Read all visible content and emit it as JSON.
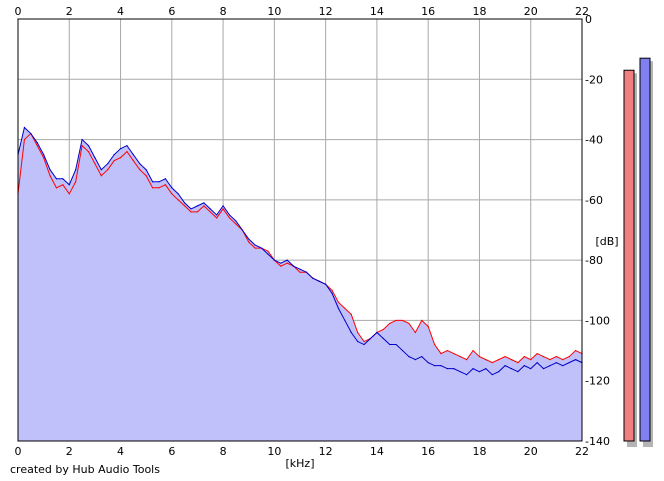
{
  "chart_data": {
    "type": "area",
    "title": "",
    "xlabel": "[kHz]",
    "ylabel": "[dB]",
    "xlim": [
      0,
      22
    ],
    "ylim": [
      -140,
      0
    ],
    "x_ticks": [
      "0",
      "2",
      "4",
      "6",
      "8",
      "10",
      "12",
      "14",
      "16",
      "18",
      "20",
      "22"
    ],
    "y_ticks": [
      "0",
      "-20",
      "-40",
      "-60",
      "-80",
      "-100",
      "-120",
      "-140"
    ],
    "grid": true,
    "x_tick_positions": [
      "top",
      "bottom"
    ],
    "y_tick_position": "right",
    "fill_color": "#c0c0fa",
    "series": [
      {
        "color": "#ff0000",
        "x": [
          0,
          0.25,
          0.5,
          0.75,
          1,
          1.25,
          1.5,
          1.75,
          2,
          2.25,
          2.5,
          2.75,
          3,
          3.25,
          3.5,
          3.75,
          4,
          4.25,
          4.5,
          4.75,
          5,
          5.25,
          5.5,
          5.75,
          6,
          6.25,
          6.5,
          6.75,
          7,
          7.25,
          7.5,
          7.75,
          8,
          8.25,
          8.5,
          8.75,
          9,
          9.25,
          9.5,
          9.75,
          10,
          10.25,
          10.5,
          10.75,
          11,
          11.25,
          11.5,
          11.75,
          12,
          12.25,
          12.5,
          12.75,
          13,
          13.25,
          13.5,
          13.75,
          14,
          14.25,
          14.5,
          14.75,
          15,
          15.25,
          15.5,
          15.75,
          16,
          16.25,
          16.5,
          16.75,
          17,
          17.25,
          17.5,
          17.75,
          18,
          18.25,
          18.5,
          18.75,
          19,
          19.25,
          19.5,
          19.75,
          20,
          20.25,
          20.5,
          20.75,
          21,
          21.25,
          21.5,
          21.75,
          22
        ],
        "values": [
          -58,
          -40,
          -38,
          -42,
          -46,
          -52,
          -56,
          -55,
          -58,
          -54,
          -42,
          -44,
          -48,
          -52,
          -50,
          -47,
          -46,
          -44,
          -47,
          -50,
          -52,
          -56,
          -56,
          -55,
          -58,
          -60,
          -62,
          -64,
          -64,
          -62,
          -64,
          -66,
          -63,
          -66,
          -68,
          -70,
          -74,
          -76,
          -76,
          -77,
          -80,
          -82,
          -81,
          -82,
          -84,
          -84,
          -86,
          -87,
          -88,
          -90,
          -94,
          -96,
          -98,
          -104,
          -107,
          -106,
          -104,
          -103,
          -101,
          -100,
          -100,
          -101,
          -104,
          -100,
          -102,
          -108,
          -111,
          -110,
          -111,
          -112,
          -113,
          -110,
          -112,
          -113,
          -114,
          -113,
          -112,
          -113,
          -114,
          -112,
          -113,
          -111,
          -112,
          -113,
          -112,
          -113,
          -112,
          -110,
          -111
        ]
      },
      {
        "color": "#0000c8",
        "x": [
          0,
          0.25,
          0.5,
          0.75,
          1,
          1.25,
          1.5,
          1.75,
          2,
          2.25,
          2.5,
          2.75,
          3,
          3.25,
          3.5,
          3.75,
          4,
          4.25,
          4.5,
          4.75,
          5,
          5.25,
          5.5,
          5.75,
          6,
          6.25,
          6.5,
          6.75,
          7,
          7.25,
          7.5,
          7.75,
          8,
          8.25,
          8.5,
          8.75,
          9,
          9.25,
          9.5,
          9.75,
          10,
          10.25,
          10.5,
          10.75,
          11,
          11.25,
          11.5,
          11.75,
          12,
          12.25,
          12.5,
          12.75,
          13,
          13.25,
          13.5,
          13.75,
          14,
          14.25,
          14.5,
          14.75,
          15,
          15.25,
          15.5,
          15.75,
          16,
          16.25,
          16.5,
          16.75,
          17,
          17.25,
          17.5,
          17.75,
          18,
          18.25,
          18.5,
          18.75,
          19,
          19.25,
          19.5,
          19.75,
          20,
          20.25,
          20.5,
          20.75,
          21,
          21.25,
          21.5,
          21.75,
          22
        ],
        "values": [
          -45,
          -36,
          -38,
          -41,
          -45,
          -50,
          -53,
          -53,
          -55,
          -50,
          -40,
          -42,
          -46,
          -50,
          -48,
          -45,
          -43,
          -42,
          -45,
          -48,
          -50,
          -54,
          -54,
          -53,
          -56,
          -58,
          -61,
          -63,
          -62,
          -61,
          -63,
          -65,
          -62,
          -65,
          -67,
          -70,
          -73,
          -75,
          -76,
          -78,
          -80,
          -81,
          -80,
          -82,
          -83,
          -84,
          -86,
          -87,
          -88,
          -91,
          -96,
          -100,
          -104,
          -107,
          -108,
          -106,
          -104,
          -106,
          -108,
          -108,
          -110,
          -112,
          -113,
          -112,
          -114,
          -115,
          -115,
          -116,
          -116,
          -117,
          -118,
          -116,
          -117,
          -116,
          -118,
          -117,
          -115,
          -116,
          -117,
          -115,
          -116,
          -114,
          -116,
          -115,
          -114,
          -115,
          -114,
          -113,
          -114
        ]
      }
    ],
    "level_meters": [
      {
        "color": "#f08080",
        "value_db": -17
      },
      {
        "color": "#8080f0",
        "value_db": -13
      }
    ]
  },
  "footer": {
    "credit": "created by Hub Audio Tools"
  }
}
